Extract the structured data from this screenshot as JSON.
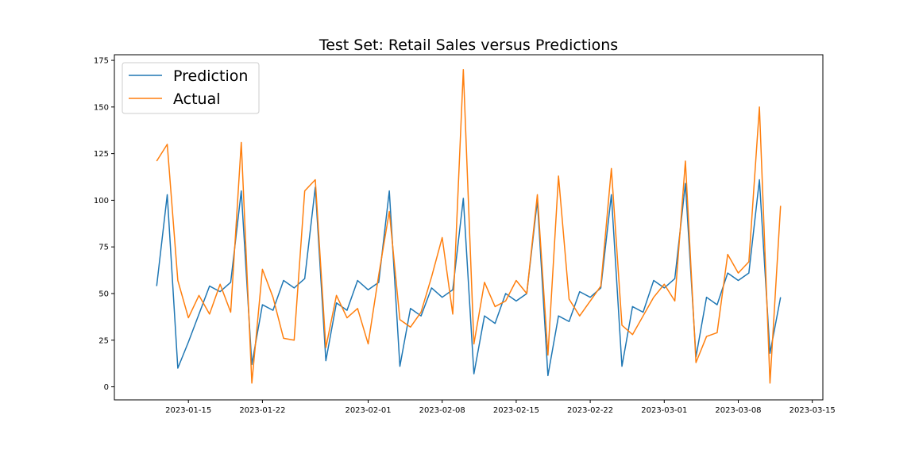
{
  "chart_data": {
    "type": "line",
    "title": "Test Set: Retail Sales versus Predictions",
    "xlabel": "",
    "ylabel": "",
    "x_start": "2023-01-12",
    "x_end": "2023-03-13",
    "xlim": [
      "2023-01-08",
      "2023-03-16"
    ],
    "ylim": [
      -7,
      178
    ],
    "x_ticks": [
      "2023-01-15",
      "2023-01-22",
      "2023-02-01",
      "2023-02-08",
      "2023-02-15",
      "2023-02-22",
      "2023-03-01",
      "2023-03-08",
      "2023-03-15"
    ],
    "y_ticks": [
      0,
      25,
      50,
      75,
      100,
      125,
      150,
      175
    ],
    "legend_position": "top-left",
    "grid": false,
    "series": [
      {
        "name": "Prediction",
        "color": "#1f77b4",
        "values": [
          54,
          103,
          10,
          24,
          39,
          54,
          51,
          56,
          105,
          12,
          44,
          41,
          57,
          53,
          58,
          107,
          14,
          45,
          41,
          57,
          52,
          56,
          105,
          11,
          42,
          38,
          53,
          48,
          52,
          101,
          7,
          38,
          34,
          50,
          46,
          50,
          100,
          6,
          38,
          35,
          51,
          48,
          53,
          103,
          11,
          43,
          40,
          57,
          53,
          58,
          109,
          16,
          48,
          44,
          61,
          57,
          61,
          111,
          18,
          48
        ]
      },
      {
        "name": "Actual",
        "color": "#ff7f0e",
        "values": [
          121,
          130,
          57,
          37,
          49,
          39,
          55,
          40,
          131,
          2,
          63,
          48,
          26,
          25,
          105,
          111,
          21,
          49,
          37,
          42,
          23,
          60,
          94,
          36,
          32,
          40,
          59,
          80,
          39,
          170,
          23,
          56,
          43,
          46,
          57,
          50,
          103,
          17,
          113,
          47,
          38,
          46,
          54,
          117,
          33,
          28,
          38,
          48,
          55,
          46,
          121,
          13,
          27,
          29,
          71,
          61,
          67,
          150,
          2,
          97
        ]
      }
    ]
  }
}
